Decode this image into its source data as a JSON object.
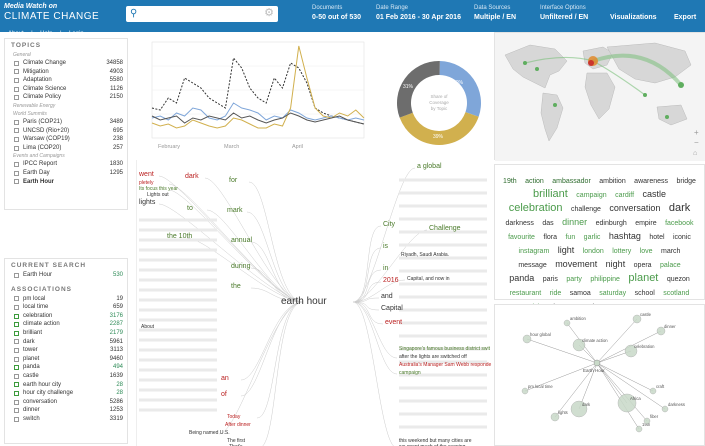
{
  "header": {
    "logo_top": "Media Watch on",
    "logo_main": "CLIMATE CHANGE",
    "subnav": [
      "About",
      "Help",
      "Login"
    ],
    "documents_label": "Documents",
    "documents_value": "0-50 out of 530",
    "date_label": "Date Range",
    "date_value": "01 Feb 2016 - 30 Apr 2016",
    "sources_label": "Data Sources",
    "sources_value": "Multiple / EN",
    "interface_label": "Interface Options",
    "interface_value": "Unfiltered / EN",
    "visualizations": "Visualizations",
    "export": "Export"
  },
  "topics": {
    "title": "TOPICS",
    "groups": [
      {
        "name": "General",
        "items": [
          {
            "label": "Climate Change",
            "count": "34858"
          },
          {
            "label": "Mitigation",
            "count": "4903"
          },
          {
            "label": "Adaptation",
            "count": "5580"
          },
          {
            "label": "Climate Science",
            "count": "1126"
          },
          {
            "label": "Climate Policy",
            "count": "2150"
          }
        ]
      },
      {
        "name": "Renewable Energy",
        "items": []
      },
      {
        "name": "World Summits",
        "items": [
          {
            "label": "Paris (COP21)",
            "count": "3489"
          },
          {
            "label": "UNCSD (Rio+20)",
            "count": "695"
          },
          {
            "label": "Warsaw (COP19)",
            "count": "238"
          },
          {
            "label": "Lima (COP20)",
            "count": "257"
          }
        ]
      },
      {
        "name": "Events and Campaigns",
        "items": [
          {
            "label": "IPCC Report",
            "count": "1830"
          },
          {
            "label": "Earth Day",
            "count": "1295"
          },
          {
            "label": "Earth Hour",
            "count": ""
          }
        ]
      }
    ]
  },
  "current_search": {
    "title": "CURRENT SEARCH",
    "item": {
      "label": "Earth Hour",
      "count": "530"
    }
  },
  "associations": {
    "title": "ASSOCIATIONS",
    "items": [
      {
        "label": "pm local",
        "count": "19"
      },
      {
        "label": "local time",
        "count": "659"
      },
      {
        "label": "celebration",
        "count": "3176"
      },
      {
        "label": "climate action",
        "count": "2287"
      },
      {
        "label": "brilliant",
        "count": "2179"
      },
      {
        "label": "dark",
        "count": "5961"
      },
      {
        "label": "tower",
        "count": "3113"
      },
      {
        "label": "planet",
        "count": "9460"
      },
      {
        "label": "panda",
        "count": "494"
      },
      {
        "label": "castle",
        "count": "1639"
      },
      {
        "label": "earth hour city",
        "count": "28"
      },
      {
        "label": "hour city challenge",
        "count": "28"
      },
      {
        "label": "conversation",
        "count": "5286"
      },
      {
        "label": "dinner",
        "count": "1253"
      },
      {
        "label": "switch",
        "count": "3319"
      }
    ]
  },
  "chart_data": [
    {
      "type": "line",
      "x": [
        "February",
        "March",
        "April"
      ],
      "ylabel": "",
      "series": []
    },
    {
      "type": "pie",
      "title": "Share of Coverage by Topic",
      "slices": [
        {
          "label": "30%",
          "value": 30,
          "color": "#7fa6d9"
        },
        {
          "label": "39%",
          "value": 39,
          "color": "#d1b04e"
        },
        {
          "label": "31%",
          "value": 31,
          "color": "#6d6d6d"
        }
      ]
    }
  ],
  "tree": {
    "center": "earth hour",
    "left_words": [
      {
        "t": "went",
        "c": "#b22"
      },
      {
        "t": "dark",
        "c": "#b22"
      },
      {
        "t": "pletely",
        "c": "#b22"
      },
      {
        "t": "for",
        "c": "#4a7a2a"
      },
      {
        "t": "Its focus this year",
        "c": "#4a7a2a"
      },
      {
        "t": "Lights out",
        "c": "#333"
      },
      {
        "t": "lights",
        "c": "#333"
      },
      {
        "t": "to",
        "c": "#4a7a2a"
      },
      {
        "t": "mark",
        "c": "#4a7a2a"
      },
      {
        "t": "the 10th",
        "c": "#4a7a2a"
      },
      {
        "t": "annual",
        "c": "#4a7a2a"
      },
      {
        "t": "during",
        "c": "#4a7a2a"
      },
      {
        "t": "the",
        "c": "#4a7a2a"
      },
      {
        "t": "an",
        "c": "#b22"
      },
      {
        "t": "of",
        "c": "#b22"
      },
      {
        "t": "About",
        "c": "#333"
      },
      {
        "t": "Today",
        "c": "#b22"
      },
      {
        "t": "After dinner",
        "c": "#b22"
      },
      {
        "t": "Being named U.S.",
        "c": "#333"
      },
      {
        "t": "The first",
        "c": "#333"
      },
      {
        "t": "That's",
        "c": "#333"
      }
    ],
    "right_words": [
      {
        "t": "a global",
        "c": "#4a7a2a"
      },
      {
        "t": "City",
        "c": "#4a7a2a"
      },
      {
        "t": "Challenge",
        "c": "#4a7a2a"
      },
      {
        "t": "is",
        "c": "#4a7a2a"
      },
      {
        "t": "in",
        "c": "#4a7a2a"
      },
      {
        "t": "2016",
        "c": "#b22"
      },
      {
        "t": "and",
        "c": "#333"
      },
      {
        "t": "Capital",
        "c": "#333"
      },
      {
        "t": "event",
        "c": "#b22"
      },
      {
        "t": "Riyadh, Saudi Arabia.",
        "c": "#333"
      },
      {
        "t": "Capital, and now in",
        "c": "#333"
      },
      {
        "t": "Singapore's famous business district swit",
        "c": "#4a7a2a"
      },
      {
        "t": "after the lights are switched off",
        "c": "#333"
      },
      {
        "t": "Australia's Manager Sam Webb responde",
        "c": "#b22"
      },
      {
        "t": "campaign",
        "c": "#4a7a2a"
      },
      {
        "t": "this weekend but many cities are",
        "c": "#333"
      },
      {
        "t": "we spent much of the evening",
        "c": "#333"
      }
    ]
  },
  "cloud": [
    {
      "t": "19th",
      "c": "#2e6b2e",
      "s": 7
    },
    {
      "t": "action",
      "c": "#2e6b2e",
      "s": 7
    },
    {
      "t": "ambassador",
      "c": "#2e6b2e",
      "s": 7
    },
    {
      "t": "ambition",
      "c": "#333",
      "s": 7
    },
    {
      "t": "awareness",
      "c": "#333",
      "s": 7
    },
    {
      "t": "bridge",
      "c": "#333",
      "s": 7
    },
    {
      "t": "brilliant",
      "c": "#4b9b4b",
      "s": 11
    },
    {
      "t": "campaign",
      "c": "#4b9b4b",
      "s": 7
    },
    {
      "t": "cardiff",
      "c": "#4b9b4b",
      "s": 7
    },
    {
      "t": "castle",
      "c": "#333",
      "s": 9
    },
    {
      "t": "celebration",
      "c": "#4b9b4b",
      "s": 11
    },
    {
      "t": "challenge",
      "c": "#333",
      "s": 7
    },
    {
      "t": "conversation",
      "c": "#333",
      "s": 9
    },
    {
      "t": "dark",
      "c": "#333",
      "s": 11
    },
    {
      "t": "darkness",
      "c": "#333",
      "s": 7
    },
    {
      "t": "das",
      "c": "#333",
      "s": 7
    },
    {
      "t": "dinner",
      "c": "#4b9b4b",
      "s": 9
    },
    {
      "t": "edinburgh",
      "c": "#333",
      "s": 7
    },
    {
      "t": "empire",
      "c": "#333",
      "s": 7
    },
    {
      "t": "facebook",
      "c": "#4b9b4b",
      "s": 7
    },
    {
      "t": "favourite",
      "c": "#4b9b4b",
      "s": 7
    },
    {
      "t": "flora",
      "c": "#333",
      "s": 7
    },
    {
      "t": "fun",
      "c": "#4b9b4b",
      "s": 7
    },
    {
      "t": "garlic",
      "c": "#4b9b4b",
      "s": 7
    },
    {
      "t": "hashtag",
      "c": "#333",
      "s": 9
    },
    {
      "t": "hotel",
      "c": "#333",
      "s": 7
    },
    {
      "t": "iconic",
      "c": "#333",
      "s": 7
    },
    {
      "t": "instagram",
      "c": "#4b9b4b",
      "s": 7
    },
    {
      "t": "light",
      "c": "#333",
      "s": 9
    },
    {
      "t": "london",
      "c": "#4b9b4b",
      "s": 7
    },
    {
      "t": "lottery",
      "c": "#4b9b4b",
      "s": 7
    },
    {
      "t": "love",
      "c": "#4b9b4b",
      "s": 7
    },
    {
      "t": "march",
      "c": "#333",
      "s": 7
    },
    {
      "t": "message",
      "c": "#333",
      "s": 7
    },
    {
      "t": "movement",
      "c": "#333",
      "s": 9
    },
    {
      "t": "night",
      "c": "#333",
      "s": 9
    },
    {
      "t": "opera",
      "c": "#333",
      "s": 7
    },
    {
      "t": "palace",
      "c": "#4b9b4b",
      "s": 7
    },
    {
      "t": "panda",
      "c": "#333",
      "s": 9
    },
    {
      "t": "paris",
      "c": "#333",
      "s": 7
    },
    {
      "t": "party",
      "c": "#4b9b4b",
      "s": 7
    },
    {
      "t": "philippine",
      "c": "#4b9b4b",
      "s": 7
    },
    {
      "t": "planet",
      "c": "#4b9b4b",
      "s": 11
    },
    {
      "t": "quezon",
      "c": "#333",
      "s": 7
    },
    {
      "t": "restaurant",
      "c": "#4b9b4b",
      "s": 7
    },
    {
      "t": "ride",
      "c": "#4b9b4b",
      "s": 7
    },
    {
      "t": "samoa",
      "c": "#333",
      "s": 7
    },
    {
      "t": "saturday",
      "c": "#4b9b4b",
      "s": 7
    },
    {
      "t": "school",
      "c": "#333",
      "s": 7
    },
    {
      "t": "scotland",
      "c": "#4b9b4b",
      "s": 7
    },
    {
      "t": "scottish",
      "c": "#4b9b4b",
      "s": 7
    },
    {
      "t": "singapore",
      "c": "#333",
      "s": 7
    },
    {
      "t": "sky",
      "c": "#333",
      "s": 7
    },
    {
      "t": "square",
      "c": "#333",
      "s": 7
    },
    {
      "t": "star",
      "c": "#333",
      "s": 7
    },
    {
      "t": "support",
      "c": "#4b9b4b",
      "s": 7
    },
    {
      "t": "switch",
      "c": "#4b9b4b",
      "s": 9
    },
    {
      "t": "symbolic",
      "c": "#333",
      "s": 7
    },
    {
      "t": "term",
      "c": "#333",
      "s": 7
    },
    {
      "t": "theatre",
      "c": "#333",
      "s": 7
    },
    {
      "t": "today",
      "c": "#333",
      "s": 7
    },
    {
      "t": "tower",
      "c": "#333",
      "s": 11
    },
    {
      "t": "twitter",
      "c": "#4b9b4b",
      "s": 7
    },
    {
      "t": "wales",
      "c": "#4b9b4b",
      "s": 9
    },
    {
      "t": "welsh",
      "c": "#333",
      "s": 7
    },
    {
      "t": "word",
      "c": "#333",
      "s": 7
    },
    {
      "t": "world",
      "c": "#333",
      "s": 7
    },
    {
      "t": "wwf",
      "c": "#4b9b4b",
      "s": 9
    }
  ],
  "network": {
    "center": "Earth Hour",
    "nodes": [
      "castle",
      "ambition",
      "hour global",
      "climate action",
      "celebration",
      "dinner",
      "pm local time",
      "craft",
      "Africa",
      "darkness",
      "dark",
      "lights",
      "19th",
      "fiber"
    ]
  }
}
